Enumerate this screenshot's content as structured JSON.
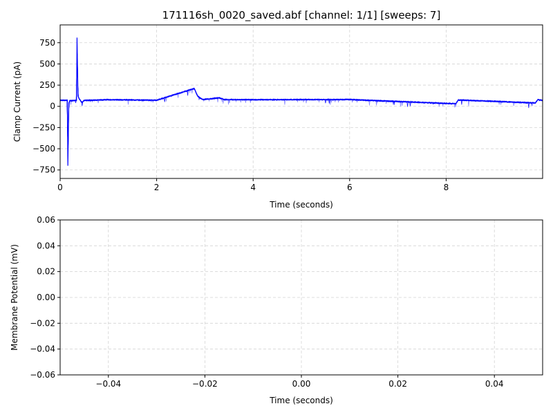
{
  "chart_data": [
    {
      "type": "line",
      "title": "171116sh_0020_saved.abf [channel: 1/1] [sweeps: 7]",
      "xlabel": "Time (seconds)",
      "ylabel": "Clamp Current (pA)",
      "xlim": [
        0,
        9.9999
      ],
      "ylim": [
        -850,
        960
      ],
      "xticks": [
        0,
        2,
        4,
        6,
        8
      ],
      "xtick_labels": [
        "0",
        "2",
        "4",
        "6",
        "8"
      ],
      "yticks": [
        -750,
        -500,
        -250,
        0,
        250,
        500,
        750
      ],
      "ytick_labels": [
        "−750",
        "−500",
        "−250",
        "0",
        "250",
        "500",
        "750"
      ],
      "grid": true,
      "line_color": "#0000ff",
      "series": [
        {
          "sweep_count": 7,
          "baseline": 75,
          "points": [
            [
              0,
              70
            ],
            [
              0.15,
              72
            ],
            [
              0.16,
              -700
            ],
            [
              0.18,
              40
            ],
            [
              0.2,
              65
            ],
            [
              0.34,
              70
            ],
            [
              0.35,
              810
            ],
            [
              0.37,
              120
            ],
            [
              0.4,
              85
            ],
            [
              0.45,
              45
            ],
            [
              0.5,
              70
            ],
            [
              1.0,
              78
            ],
            [
              2.0,
              72
            ],
            [
              2.78,
              210
            ],
            [
              2.85,
              120
            ],
            [
              2.95,
              80
            ],
            [
              3.3,
              100
            ],
            [
              3.4,
              80
            ],
            [
              4.0,
              78
            ],
            [
              6.0,
              80
            ],
            [
              8.2,
              30
            ],
            [
              8.25,
              75
            ],
            [
              9.85,
              40
            ],
            [
              9.9,
              78
            ],
            [
              9.9999,
              70
            ]
          ]
        }
      ]
    },
    {
      "type": "line",
      "title": "",
      "xlabel": "Time (seconds)",
      "ylabel": "Membrane Potential (mV)",
      "xlim": [
        -0.05,
        0.05
      ],
      "ylim": [
        -0.06,
        0.06
      ],
      "xticks": [
        -0.04,
        -0.02,
        0.0,
        0.02,
        0.04
      ],
      "xtick_labels": [
        "−0.04",
        "−0.02",
        "0.00",
        "0.02",
        "0.04"
      ],
      "yticks": [
        -0.06,
        -0.04,
        -0.02,
        0.0,
        0.02,
        0.04,
        0.06
      ],
      "ytick_labels": [
        "−0.06",
        "−0.04",
        "−0.02",
        "0.00",
        "0.02",
        "0.04",
        "0.06"
      ],
      "grid": true,
      "series": []
    }
  ]
}
